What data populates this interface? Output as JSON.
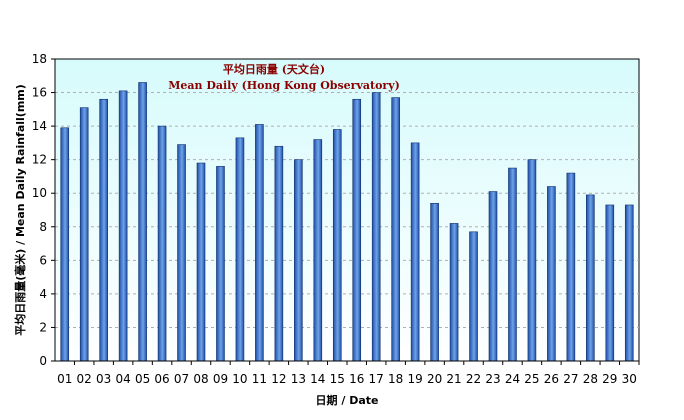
{
  "chart_data": {
    "type": "bar",
    "title": "平均日雨量 (天文台)",
    "subtitle": "Mean Daily (Hong Kong Observatory)",
    "xlabel": "日期 / Date",
    "ylabel": "平均日雨量(毫米) / Mean Daily Rainfall(mm)",
    "ylim": [
      0,
      18
    ],
    "yticks": [
      "0",
      "2",
      "4",
      "6",
      "8",
      "10",
      "12",
      "14",
      "16",
      "18"
    ],
    "grid": true,
    "categories": [
      "01",
      "02",
      "03",
      "04",
      "05",
      "06",
      "07",
      "08",
      "09",
      "10",
      "11",
      "12",
      "13",
      "14",
      "15",
      "16",
      "17",
      "18",
      "19",
      "20",
      "21",
      "22",
      "23",
      "24",
      "25",
      "26",
      "27",
      "28",
      "29",
      "30"
    ],
    "values": [
      13.9,
      15.1,
      15.6,
      16.1,
      16.6,
      14.0,
      12.9,
      11.8,
      11.6,
      13.3,
      14.1,
      12.8,
      12.0,
      13.2,
      13.8,
      15.6,
      16.0,
      15.7,
      13.0,
      9.4,
      8.2,
      7.7,
      10.1,
      11.5,
      12.0,
      10.4,
      11.2,
      9.9,
      9.3,
      9.3
    ],
    "colors": {
      "plot_bg_top": "#d7fbfc",
      "plot_bg_bottom": "#ffffff",
      "bar_dark": "#1f4fa8",
      "bar_light": "#6fa3e8",
      "title": "#8b0000",
      "grid": "#b0b0b0"
    }
  }
}
